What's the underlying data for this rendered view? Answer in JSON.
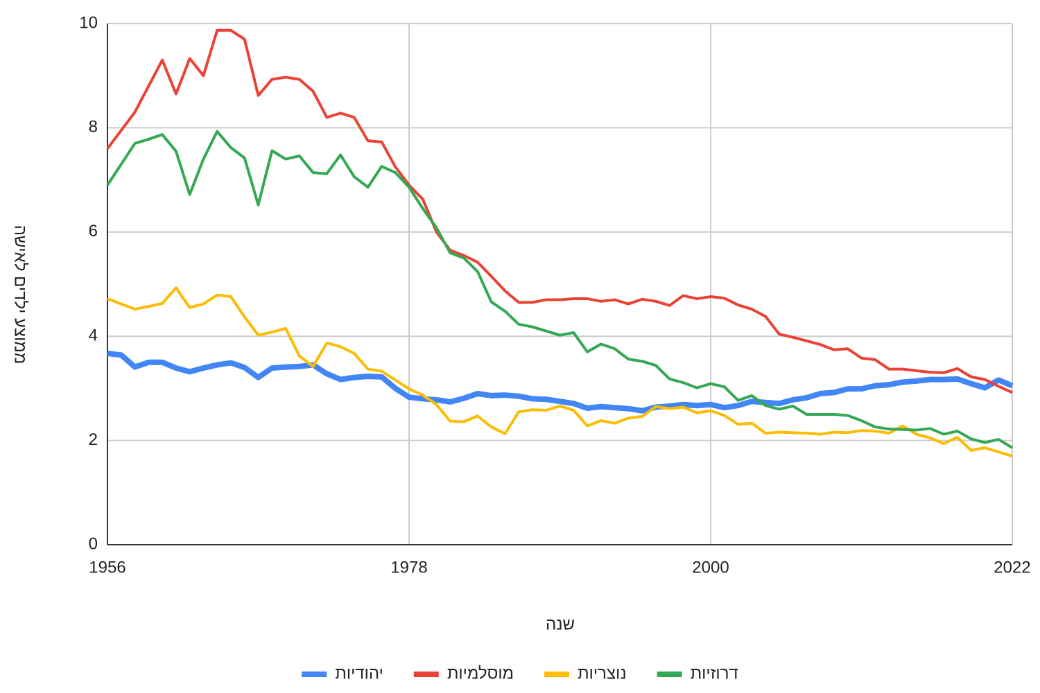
{
  "chart_data": {
    "type": "line",
    "y_label": "ממוצע ילדים לאישה",
    "x_label": "שנה",
    "x": [
      1956,
      1957,
      1958,
      1959,
      1960,
      1961,
      1962,
      1963,
      1964,
      1965,
      1966,
      1967,
      1968,
      1969,
      1970,
      1971,
      1972,
      1973,
      1974,
      1975,
      1976,
      1977,
      1978,
      1979,
      1980,
      1981,
      1982,
      1983,
      1984,
      1985,
      1986,
      1987,
      1988,
      1989,
      1990,
      1991,
      1992,
      1993,
      1994,
      1995,
      1996,
      1997,
      1998,
      1999,
      2000,
      2001,
      2002,
      2003,
      2004,
      2005,
      2006,
      2007,
      2008,
      2009,
      2010,
      2011,
      2012,
      2013,
      2014,
      2015,
      2016,
      2017,
      2018,
      2019,
      2020,
      2021,
      2022
    ],
    "xlim": [
      1956,
      2022
    ],
    "xticks": [
      1956,
      1978,
      2000,
      2022
    ],
    "ylim": [
      0,
      10
    ],
    "yticks": [
      0,
      2,
      4,
      6,
      8,
      10
    ],
    "grid": true,
    "legend": "bottom",
    "series": [
      {
        "name": "יהודיות",
        "color": "#4285f4",
        "line_width": 8,
        "values": [
          3.67,
          3.64,
          3.41,
          3.5,
          3.5,
          3.39,
          3.32,
          3.39,
          3.45,
          3.49,
          3.4,
          3.21,
          3.39,
          3.41,
          3.42,
          3.45,
          3.28,
          3.17,
          3.21,
          3.23,
          3.22,
          3.0,
          2.83,
          2.8,
          2.78,
          2.74,
          2.81,
          2.9,
          2.86,
          2.87,
          2.85,
          2.8,
          2.79,
          2.75,
          2.71,
          2.62,
          2.65,
          2.63,
          2.61,
          2.57,
          2.64,
          2.66,
          2.69,
          2.67,
          2.69,
          2.63,
          2.67,
          2.75,
          2.73,
          2.71,
          2.78,
          2.82,
          2.9,
          2.92,
          2.99,
          2.99,
          3.05,
          3.07,
          3.12,
          3.14,
          3.17,
          3.17,
          3.18,
          3.09,
          3.01,
          3.16,
          3.05
        ]
      },
      {
        "name": "מוסלמיות",
        "color": "#ea4335",
        "line_width": 4,
        "values": [
          7.6,
          7.95,
          8.3,
          8.8,
          9.3,
          8.65,
          9.33,
          9.0,
          9.87,
          9.87,
          9.7,
          8.62,
          8.93,
          8.97,
          8.93,
          8.7,
          8.2,
          8.28,
          8.2,
          7.75,
          7.73,
          7.25,
          6.9,
          6.63,
          6.0,
          5.65,
          5.55,
          5.42,
          5.15,
          4.87,
          4.65,
          4.65,
          4.7,
          4.7,
          4.72,
          4.72,
          4.67,
          4.7,
          4.62,
          4.71,
          4.67,
          4.59,
          4.78,
          4.72,
          4.76,
          4.73,
          4.6,
          4.52,
          4.38,
          4.04,
          3.98,
          3.91,
          3.84,
          3.74,
          3.76,
          3.58,
          3.55,
          3.37,
          3.37,
          3.34,
          3.31,
          3.3,
          3.38,
          3.22,
          3.17,
          3.04,
          2.92
        ]
      },
      {
        "name": "נוצריות",
        "color": "#fbbc04",
        "line_width": 4,
        "values": [
          4.72,
          4.62,
          4.52,
          4.57,
          4.63,
          4.93,
          4.55,
          4.62,
          4.79,
          4.76,
          4.37,
          4.02,
          4.08,
          4.15,
          3.62,
          3.42,
          3.87,
          3.8,
          3.67,
          3.37,
          3.33,
          3.16,
          2.99,
          2.87,
          2.69,
          2.37,
          2.36,
          2.47,
          2.26,
          2.13,
          2.55,
          2.59,
          2.58,
          2.66,
          2.58,
          2.28,
          2.38,
          2.33,
          2.43,
          2.46,
          2.65,
          2.61,
          2.64,
          2.53,
          2.57,
          2.48,
          2.31,
          2.33,
          2.14,
          2.16,
          2.15,
          2.14,
          2.12,
          2.16,
          2.15,
          2.19,
          2.18,
          2.14,
          2.28,
          2.12,
          2.05,
          1.94,
          2.06,
          1.81,
          1.86,
          1.78,
          1.7
        ]
      },
      {
        "name": "דרוזיות",
        "color": "#34a853",
        "line_width": 4,
        "values": [
          6.9,
          7.3,
          7.7,
          7.78,
          7.87,
          7.55,
          6.72,
          7.4,
          7.93,
          7.62,
          7.42,
          6.52,
          7.56,
          7.4,
          7.46,
          7.14,
          7.12,
          7.48,
          7.06,
          6.86,
          7.26,
          7.14,
          6.86,
          6.45,
          6.08,
          5.6,
          5.5,
          5.24,
          4.66,
          4.48,
          4.23,
          4.18,
          4.1,
          4.02,
          4.07,
          3.7,
          3.85,
          3.76,
          3.56,
          3.52,
          3.44,
          3.18,
          3.11,
          3.01,
          3.09,
          3.03,
          2.77,
          2.86,
          2.67,
          2.6,
          2.66,
          2.5,
          2.5,
          2.5,
          2.48,
          2.38,
          2.26,
          2.22,
          2.21,
          2.2,
          2.23,
          2.12,
          2.18,
          2.03,
          1.96,
          2.02,
          1.86
        ]
      }
    ]
  }
}
